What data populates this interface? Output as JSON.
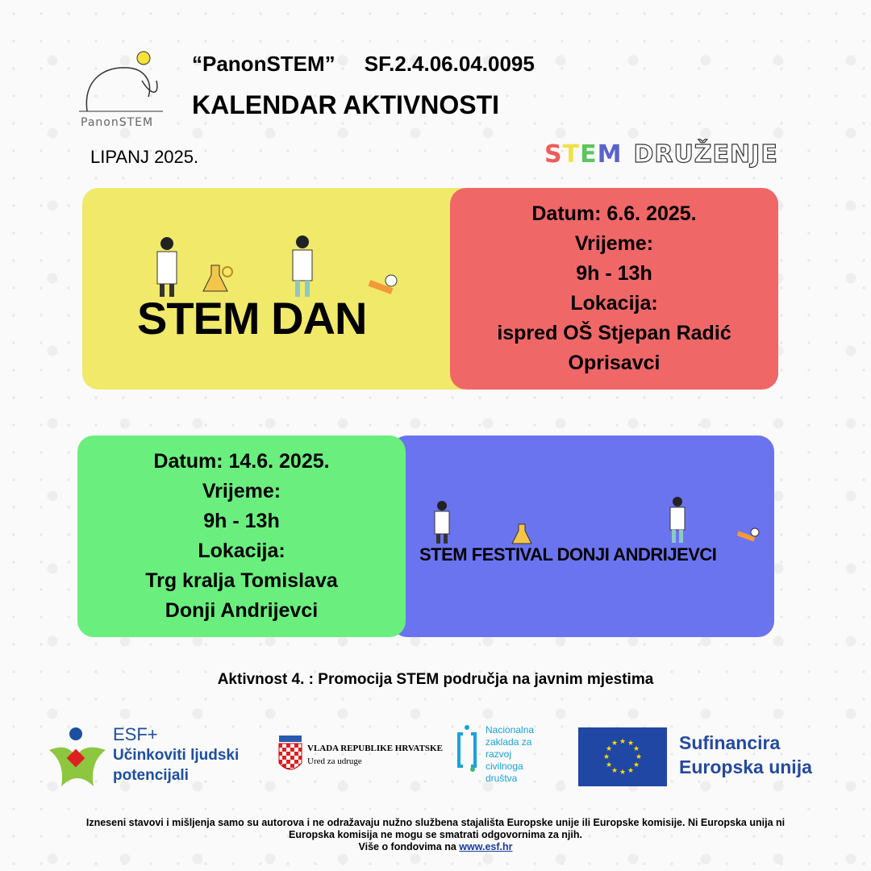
{
  "header": {
    "project": "“PanonSTEM”     SF.2.4.06.04.0095",
    "title": "KALENDAR AKTIVNOSTI",
    "month": "LIPANJ 2025.",
    "logo_text": "PanonSTEM",
    "tagline": {
      "s": "S",
      "t": "T",
      "e": "E",
      "m": "M",
      "rest": "DRUŽENJE"
    }
  },
  "events": [
    {
      "title": "STEM DAN",
      "lines": [
        "Datum: 6.6. 2025.",
        "Vrijeme:",
        "9h - 13h",
        "Lokacija:",
        "ispred OŠ Stjepan Radić",
        "Oprisavci"
      ],
      "color": "#f0e96a",
      "info_color": "#f06767"
    },
    {
      "title": "STEM FESTIVAL DONJI ANDRIJEVCI",
      "lines": [
        "Datum: 14.6. 2025.",
        "Vrijeme:",
        "9h - 13h",
        "Lokacija:",
        "Trg kralja Tomislava",
        "Donji Andrijevci"
      ],
      "color": "#6b74ef",
      "info_color": "#6aef7e"
    }
  ],
  "activity": "Aktivnost 4. :  Promocija STEM područja na javnim mjestima",
  "sponsors": {
    "esf_top": "ESF+",
    "esf_line1": "Učinkoviti ljudski",
    "esf_line2": "potencijali",
    "vlada_line1": "VLADA REPUBLIKE HRVATSKE",
    "vlada_line2": "Ured za udruge",
    "nz": [
      "Nacionalna",
      "zaklada za",
      "razvoj",
      "civilnoga",
      "društva"
    ],
    "eu_line1": "Sufinancira",
    "eu_line2": "Europska unija"
  },
  "disclaimer": {
    "line1": "Izneseni stavovi i mišljenja samo su autorova i ne odražavaju nužno službena stajališta Europske unije ili Europske komisije. Ni Europska unija ni",
    "line2": "Europska komisija ne mogu se smatrati odgovornima za njih.",
    "line3": "Više o fondovima na ",
    "link": "www.esf.hr"
  }
}
